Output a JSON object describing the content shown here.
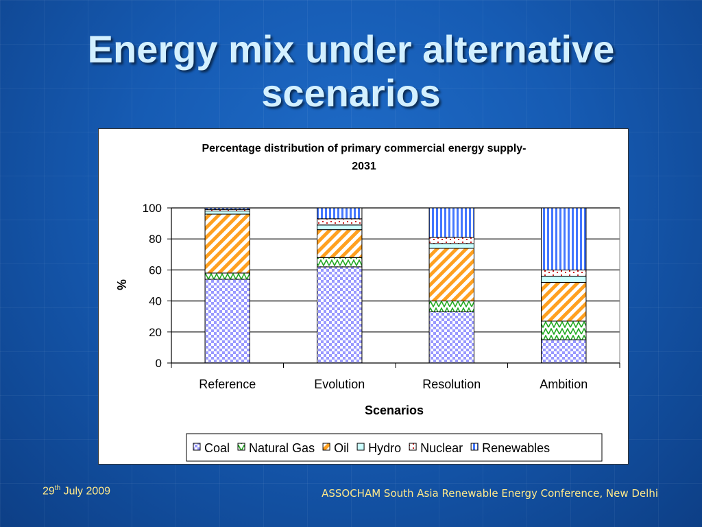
{
  "slide": {
    "title_line1": "Energy mix under alternative",
    "title_line2": "scenarios",
    "footer_date_day": "29",
    "footer_date_suffix": "th",
    "footer_date_rest": " July 2009",
    "footer_conference": "ASSOCHAM South Asia Renewable Energy Conference, New Delhi"
  },
  "chart_data": {
    "type": "bar",
    "stacked": true,
    "title_line1": "Percentage distribution of primary commercial energy supply-",
    "title_line2": "2031",
    "xlabel": "Scenarios",
    "ylabel": "%",
    "ylim": [
      0,
      100
    ],
    "yticks": [
      0,
      20,
      40,
      60,
      80,
      100
    ],
    "grid": true,
    "legend": "bottom",
    "categories": [
      "Reference",
      "Evolution",
      "Resolution",
      "Ambition"
    ],
    "series": [
      {
        "name": "Coal",
        "values": [
          54,
          62,
          33,
          15
        ],
        "color": "#9999ff",
        "pattern": "checker"
      },
      {
        "name": "Natural Gas",
        "values": [
          4,
          6,
          7,
          12
        ],
        "color": "#22aa22",
        "pattern": "zigzag"
      },
      {
        "name": "Oil",
        "values": [
          38,
          18,
          34,
          25
        ],
        "color": "#ffa020",
        "pattern": "diagonal"
      },
      {
        "name": "Hydro",
        "values": [
          2,
          3,
          3,
          4
        ],
        "color": "#ccffff",
        "pattern": "solid"
      },
      {
        "name": "Nuclear",
        "values": [
          1,
          4,
          4,
          4
        ],
        "color": "#cc2222",
        "pattern": "dots"
      },
      {
        "name": "Renewables",
        "values": [
          1,
          7,
          19,
          40
        ],
        "color": "#4477ff",
        "pattern": "vertical"
      }
    ]
  }
}
